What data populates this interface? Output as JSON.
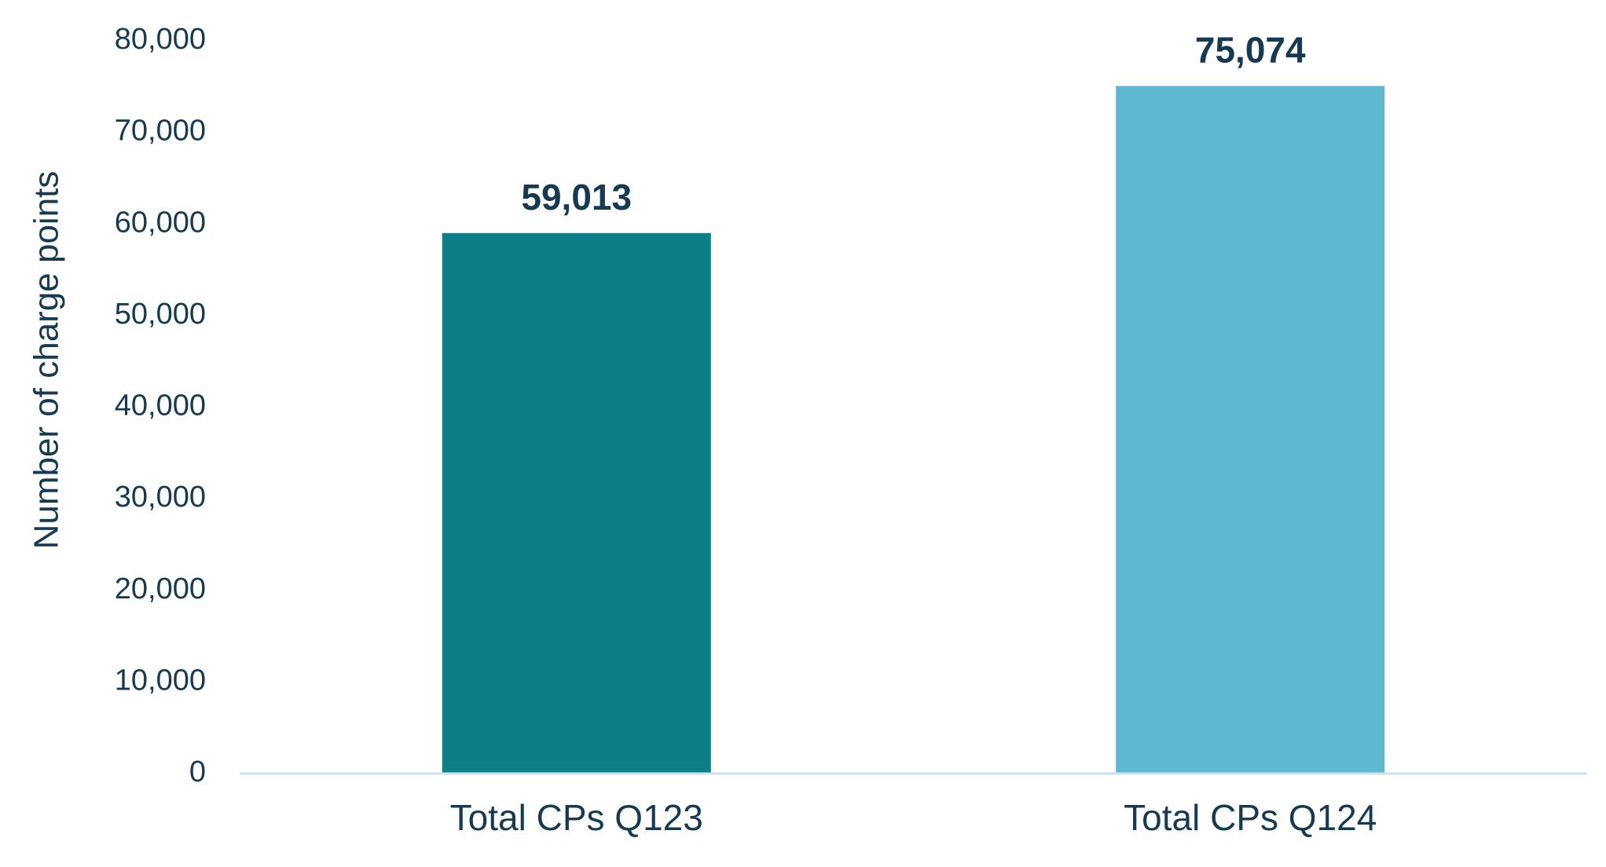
{
  "chart_data": {
    "type": "bar",
    "title": "",
    "xlabel": "",
    "ylabel": "Number of charge points",
    "categories": [
      "Total CPs Q123",
      "Total CPs Q124"
    ],
    "values": [
      59013,
      75074
    ],
    "data_labels": [
      "59,013",
      "75,074"
    ],
    "bar_colors": [
      "#0b7e87",
      "#5fb7d2"
    ],
    "ylim": [
      0,
      80000
    ],
    "yticks": [
      0,
      10000,
      20000,
      30000,
      40000,
      50000,
      60000,
      70000,
      80000
    ],
    "ytick_labels": [
      "0",
      "10,000",
      "20,000",
      "30,000",
      "40,000",
      "50,000",
      "60,000",
      "70,000",
      "80,000"
    ],
    "grid": false,
    "legend": "none"
  },
  "colors": {
    "text": "#163a52",
    "axis_line": "#c5e3f0"
  }
}
